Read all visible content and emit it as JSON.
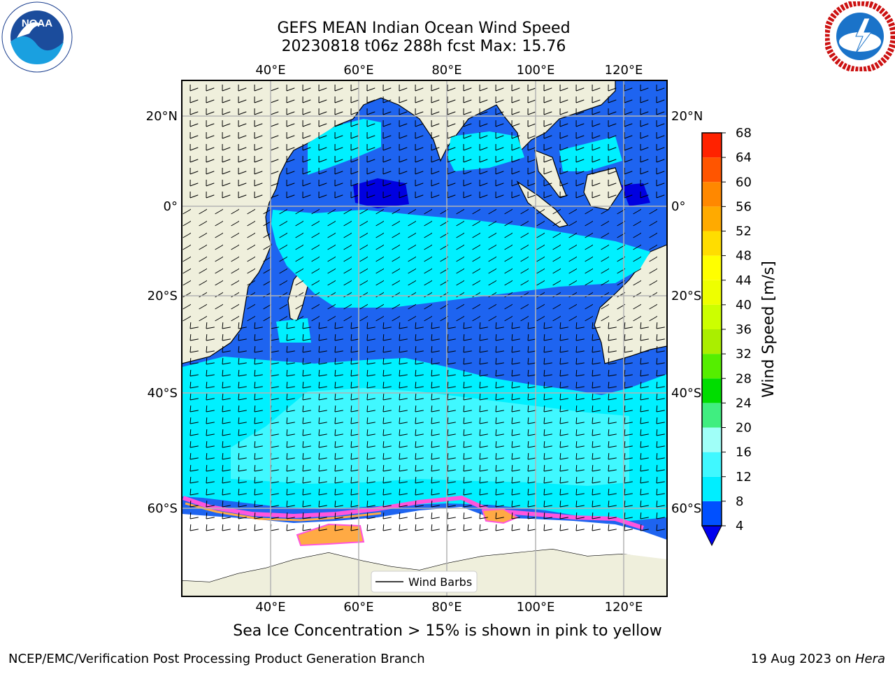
{
  "title": {
    "line1": "GEFS MEAN Indian Ocean Wind Speed",
    "line2": "20230818 t06z 288h fcst   Max: 15.76"
  },
  "map": {
    "lon_ticks": [
      "40°E",
      "60°E",
      "80°E",
      "100°E",
      "120°E"
    ],
    "lat_ticks": [
      "20°N",
      "0°",
      "20°S",
      "40°S",
      "60°S"
    ],
    "legend_label": "Wind Barbs"
  },
  "colorbar": {
    "label": "Wind Speed [m/s]",
    "ticks": [
      "4",
      "8",
      "12",
      "16",
      "20",
      "24",
      "28",
      "32",
      "36",
      "40",
      "44",
      "48",
      "52",
      "56",
      "60",
      "64",
      "68"
    ],
    "colors": [
      "#0050ff",
      "#00eeff",
      "#40f8ff",
      "#a0fff8",
      "#40ee80",
      "#00dd00",
      "#55ee00",
      "#aaee00",
      "#ccff00",
      "#eeff00",
      "#ffff00",
      "#ffdd00",
      "#ffaa00",
      "#ff8800",
      "#ff5500",
      "#ff2200"
    ],
    "under_color": "#0000ee"
  },
  "footnote": "Sea Ice Concentration > 15% is shown in pink to yellow",
  "credit": {
    "left": "NCEP/EMC/Verification Post Processing Product Generation Branch",
    "right_date": "19 Aug 2023 on ",
    "right_host": "Hera"
  },
  "colors": {
    "land": "#efefdc",
    "ocean_dark": "#0000e0",
    "ocean_mid": "#1e64f0",
    "ocean_cyan": "#00f0ff",
    "ocean_light": "#40f8ff",
    "ice_white": "#ffffff",
    "ice_pink": "#ff55dd",
    "ice_orange": "#ffaa44"
  }
}
